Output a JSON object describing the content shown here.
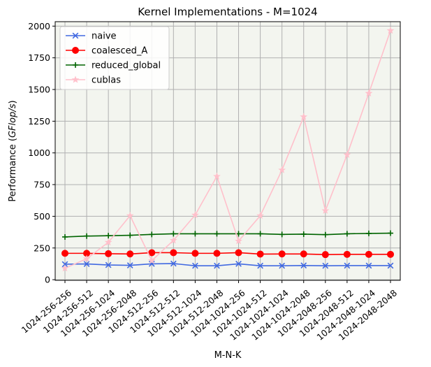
{
  "chart_data": {
    "type": "line",
    "title": "Kernel Implementations - M=1024",
    "xlabel": "M-N-K",
    "ylabel_main": "Performance (",
    "ylabel_italic": "GFlop/s",
    "ylabel_close": ")",
    "ylim": [
      -5,
      2035
    ],
    "yticks": [
      0,
      250,
      500,
      750,
      1000,
      1250,
      1500,
      1750,
      2000
    ],
    "grid": true,
    "legend_position": "top-left",
    "background_color": "#f3f5ef",
    "categories": [
      "1024-256-256",
      "1024-256-512",
      "1024-256-1024",
      "1024-256-2048",
      "1024-512-256",
      "1024-512-512",
      "1024-512-1024",
      "1024-512-2048",
      "1024-1024-256",
      "1024-1024-512",
      "1024-1024-1024",
      "1024-1024-2048",
      "1024-2048-256",
      "1024-2048-512",
      "1024-2048-1024",
      "1024-2048-2048"
    ],
    "series": [
      {
        "name": "naive",
        "color": "#4169e1",
        "marker": "x",
        "values": [
          122,
          124,
          116,
          113,
          125,
          127,
          110,
          110,
          125,
          110,
          110,
          112,
          110,
          111,
          111,
          111
        ]
      },
      {
        "name": "coalesced_A",
        "color": "#ff0000",
        "marker": "circle",
        "values": [
          208,
          208,
          205,
          203,
          213,
          213,
          208,
          208,
          213,
          202,
          203,
          203,
          198,
          200,
          200,
          200
        ]
      },
      {
        "name": "reduced_global",
        "color": "#006400",
        "marker": "plus",
        "values": [
          337,
          344,
          347,
          350,
          357,
          362,
          362,
          362,
          362,
          362,
          357,
          359,
          355,
          362,
          365,
          367
        ]
      },
      {
        "name": "cublas",
        "color": "#ffc0cb",
        "marker": "star",
        "values": [
          90,
          165,
          295,
          505,
          150,
          310,
          510,
          815,
          305,
          505,
          865,
          1285,
          545,
          985,
          1470,
          1965
        ]
      }
    ]
  }
}
